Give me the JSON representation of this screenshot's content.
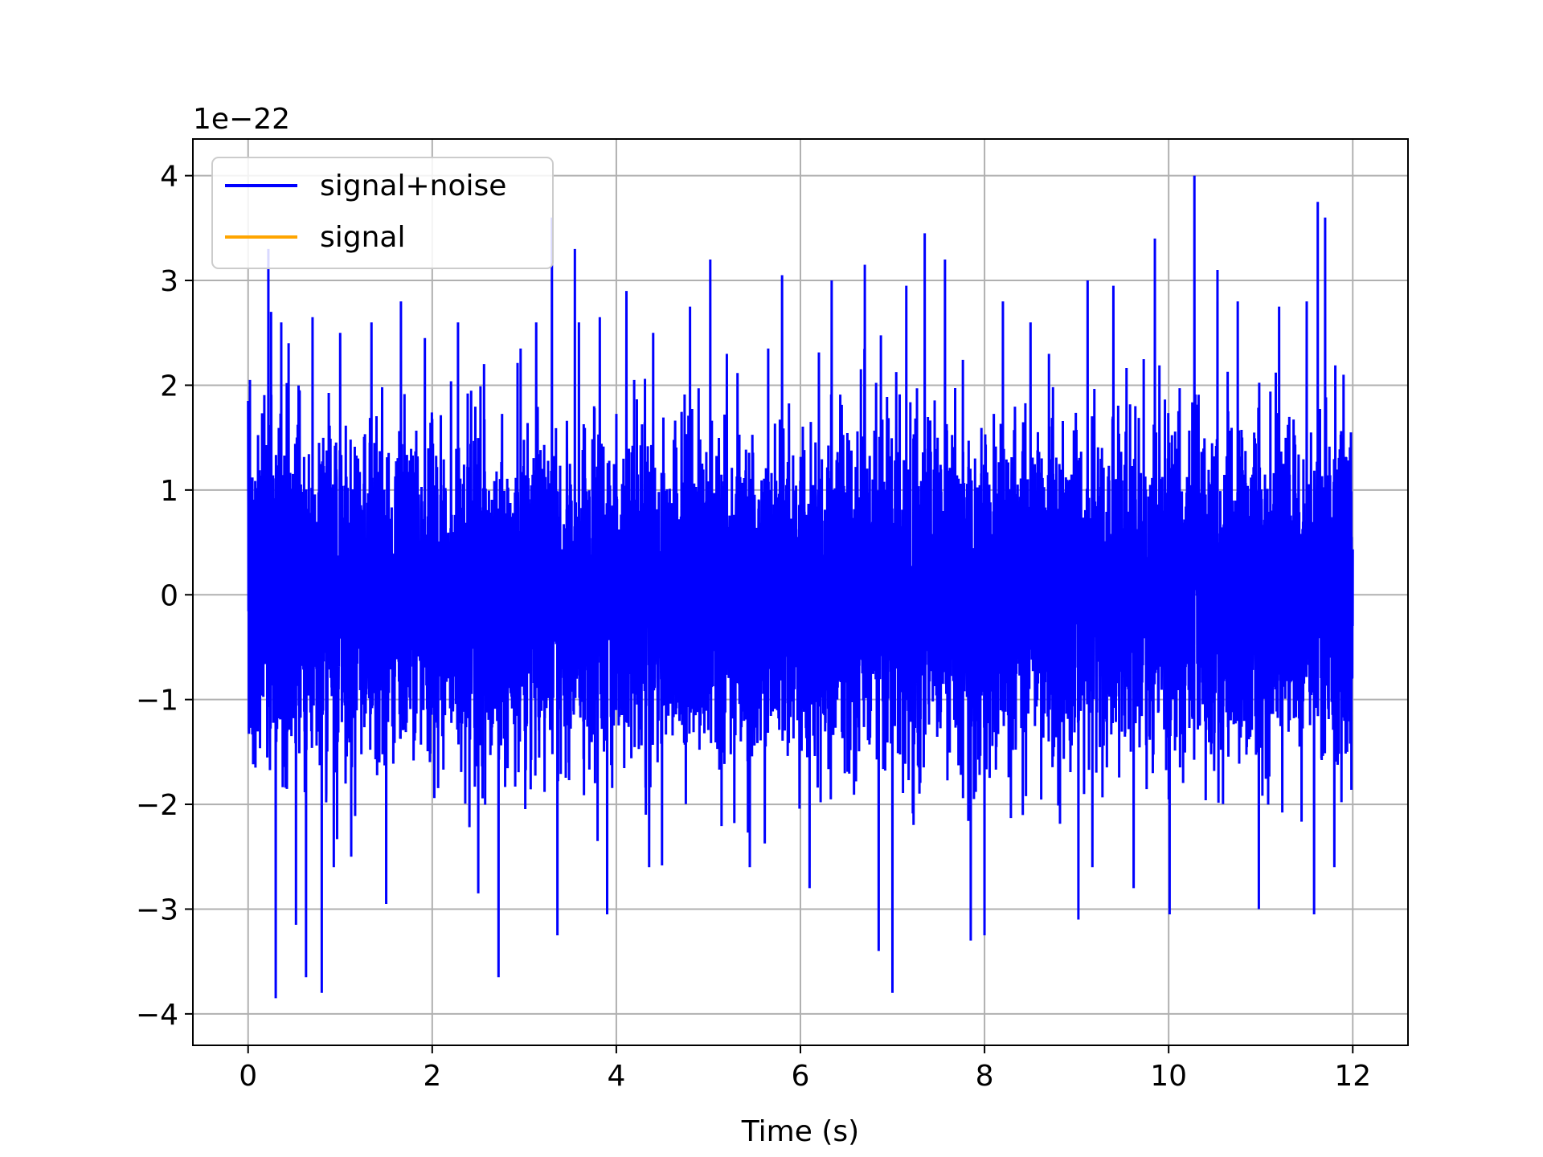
{
  "chart_data": {
    "type": "line",
    "title": "",
    "xlabel": "Time (s)",
    "ylabel": "",
    "offset_text": "1e−22",
    "y_scale_factor": 1e-22,
    "xlim": [
      -0.6,
      12.6
    ],
    "ylim": [
      -4.3,
      4.35
    ],
    "xticks": [
      0,
      2,
      4,
      6,
      8,
      10,
      12
    ],
    "xtick_labels": [
      "0",
      "2",
      "4",
      "6",
      "8",
      "10",
      "12"
    ],
    "yticks": [
      -4,
      -3,
      -2,
      -1,
      0,
      1,
      2,
      3,
      4
    ],
    "ytick_labels": [
      "−4",
      "−3",
      "−2",
      "−1",
      "0",
      "1",
      "2",
      "3",
      "4"
    ],
    "grid": true,
    "legend_position": "upper-left",
    "series": [
      {
        "name": "signal+noise",
        "color": "#0000ff",
        "x_range": [
          0,
          12
        ],
        "envelope_typical": [
          -1.8,
          1.8
        ],
        "peaks": [
          {
            "x": 0.0,
            "y": 1.85
          },
          {
            "x": 0.02,
            "y": 2.05
          },
          {
            "x": 0.08,
            "y": -1.65
          },
          {
            "x": 0.22,
            "y": 3.3
          },
          {
            "x": 0.25,
            "y": 2.7
          },
          {
            "x": 0.3,
            "y": -3.85
          },
          {
            "x": 0.36,
            "y": 2.6
          },
          {
            "x": 0.44,
            "y": 2.4
          },
          {
            "x": 0.52,
            "y": -3.15
          },
          {
            "x": 0.63,
            "y": -3.65
          },
          {
            "x": 0.7,
            "y": 2.65
          },
          {
            "x": 0.8,
            "y": -3.8
          },
          {
            "x": 1.0,
            "y": 2.5
          },
          {
            "x": 1.12,
            "y": -2.5
          },
          {
            "x": 1.34,
            "y": 2.6
          },
          {
            "x": 1.5,
            "y": -2.95
          },
          {
            "x": 1.66,
            "y": 2.8
          },
          {
            "x": 1.92,
            "y": 2.45
          },
          {
            "x": 2.28,
            "y": 2.6
          },
          {
            "x": 2.5,
            "y": -2.85
          },
          {
            "x": 2.72,
            "y": -3.65
          },
          {
            "x": 2.96,
            "y": 2.35
          },
          {
            "x": 3.13,
            "y": 2.6
          },
          {
            "x": 3.3,
            "y": 3.6
          },
          {
            "x": 3.36,
            "y": -3.25
          },
          {
            "x": 3.55,
            "y": 3.3
          },
          {
            "x": 3.82,
            "y": 2.65
          },
          {
            "x": 3.9,
            "y": -3.05
          },
          {
            "x": 4.11,
            "y": 2.9
          },
          {
            "x": 4.4,
            "y": 2.5
          },
          {
            "x": 4.8,
            "y": 2.75
          },
          {
            "x": 5.02,
            "y": 3.2
          },
          {
            "x": 5.2,
            "y": 2.3
          },
          {
            "x": 5.45,
            "y": -2.6
          },
          {
            "x": 5.65,
            "y": 2.35
          },
          {
            "x": 5.8,
            "y": 3.05
          },
          {
            "x": 6.1,
            "y": -2.8
          },
          {
            "x": 6.34,
            "y": 3.0
          },
          {
            "x": 6.7,
            "y": 3.15
          },
          {
            "x": 6.85,
            "y": -3.4
          },
          {
            "x": 7.0,
            "y": -3.8
          },
          {
            "x": 7.15,
            "y": 2.95
          },
          {
            "x": 7.35,
            "y": 3.45
          },
          {
            "x": 7.57,
            "y": 3.2
          },
          {
            "x": 7.85,
            "y": -3.3
          },
          {
            "x": 8.0,
            "y": -3.25
          },
          {
            "x": 8.2,
            "y": 2.8
          },
          {
            "x": 8.5,
            "y": 2.6
          },
          {
            "x": 8.7,
            "y": 2.3
          },
          {
            "x": 9.02,
            "y": -3.1
          },
          {
            "x": 9.12,
            "y": 3.0
          },
          {
            "x": 9.4,
            "y": 2.95
          },
          {
            "x": 9.62,
            "y": -2.8
          },
          {
            "x": 9.85,
            "y": 3.4
          },
          {
            "x": 10.01,
            "y": -3.05
          },
          {
            "x": 10.28,
            "y": 4.0
          },
          {
            "x": 10.53,
            "y": 3.1
          },
          {
            "x": 10.75,
            "y": 2.8
          },
          {
            "x": 10.98,
            "y": -3.0
          },
          {
            "x": 11.2,
            "y": 2.75
          },
          {
            "x": 11.5,
            "y": 2.8
          },
          {
            "x": 11.58,
            "y": -3.05
          },
          {
            "x": 11.62,
            "y": 3.75
          },
          {
            "x": 11.7,
            "y": 3.6
          },
          {
            "x": 11.8,
            "y": -2.6
          },
          {
            "x": 11.9,
            "y": 2.1
          },
          {
            "x": 11.98,
            "y": 1.55
          }
        ]
      },
      {
        "name": "signal",
        "color": "#ffa500",
        "x_range": [
          0,
          12
        ],
        "values_note": ""
      }
    ]
  }
}
